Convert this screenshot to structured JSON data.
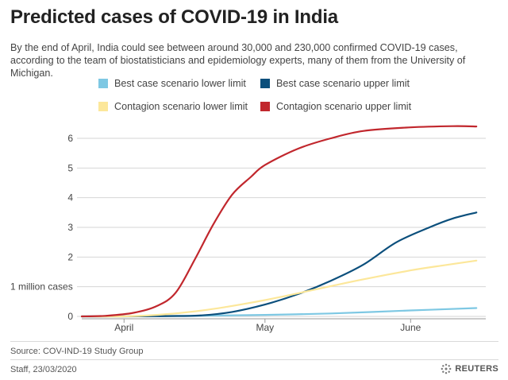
{
  "header": {
    "title": "Predicted cases of COVID-19 in India",
    "subtitle": "By the end of April, India could see between around 30,000 and 230,000 confirmed COVID-19 cases, according to the team of biostatisticians and epidemiology experts, many of them from the University of Michigan."
  },
  "legend": {
    "items": [
      {
        "label": "Best case scenario lower limit",
        "color": "#7ec8e3"
      },
      {
        "label": "Best case scenario upper limit",
        "color": "#0b4f7c"
      },
      {
        "label": "Contagion scenario lower limit",
        "color": "#fce79a"
      },
      {
        "label": "Contagion scenario upper limit",
        "color": "#c1272d"
      }
    ]
  },
  "footer": {
    "source": "Source: COV-IND-19 Study Group",
    "credit": "Staff, 23/03/2020",
    "brand": "REUTERS"
  },
  "chart_data": {
    "type": "line",
    "title": "Predicted cases of COVID-19 in India",
    "xlabel": "",
    "ylabel": "",
    "y_unit_label": "1 million cases",
    "ylim": [
      0,
      6.5
    ],
    "y_ticks": [
      0,
      1,
      2,
      3,
      4,
      5,
      6
    ],
    "y_tick_labels": [
      "0",
      "",
      "2",
      "3",
      "4",
      "5",
      "6"
    ],
    "xlim": [
      "2020-03-23",
      "2020-06-17"
    ],
    "x_ticks": [
      {
        "date": "2020-04-01",
        "label": "April"
      },
      {
        "date": "2020-05-01",
        "label": "May"
      },
      {
        "date": "2020-06-01",
        "label": "June"
      }
    ],
    "grid": "horizontal",
    "legend_position": "top",
    "series": [
      {
        "name": "Best case scenario lower limit",
        "color": "#7ec8e3",
        "points": [
          [
            "2020-03-23",
            0
          ],
          [
            "2020-04-01",
            0
          ],
          [
            "2020-04-15",
            0.02
          ],
          [
            "2020-05-01",
            0.05
          ],
          [
            "2020-05-15",
            0.1
          ],
          [
            "2020-06-01",
            0.2
          ],
          [
            "2020-06-15",
            0.28
          ]
        ]
      },
      {
        "name": "Best case scenario upper limit",
        "color": "#0b4f7c",
        "points": [
          [
            "2020-03-23",
            0
          ],
          [
            "2020-04-01",
            0
          ],
          [
            "2020-04-10",
            0.01
          ],
          [
            "2020-04-17",
            0.03
          ],
          [
            "2020-04-24",
            0.15
          ],
          [
            "2020-05-01",
            0.4
          ],
          [
            "2020-05-08",
            0.75
          ],
          [
            "2020-05-15",
            1.2
          ],
          [
            "2020-05-22",
            1.75
          ],
          [
            "2020-05-29",
            2.5
          ],
          [
            "2020-06-05",
            3.0
          ],
          [
            "2020-06-10",
            3.3
          ],
          [
            "2020-06-15",
            3.5
          ]
        ]
      },
      {
        "name": "Contagion scenario lower limit",
        "color": "#fce79a",
        "points": [
          [
            "2020-03-23",
            0
          ],
          [
            "2020-04-01",
            0
          ],
          [
            "2020-04-08",
            0.05
          ],
          [
            "2020-04-15",
            0.15
          ],
          [
            "2020-04-22",
            0.3
          ],
          [
            "2020-05-01",
            0.55
          ],
          [
            "2020-05-08",
            0.78
          ],
          [
            "2020-05-15",
            1.02
          ],
          [
            "2020-05-22",
            1.25
          ],
          [
            "2020-06-01",
            1.55
          ],
          [
            "2020-06-08",
            1.72
          ],
          [
            "2020-06-15",
            1.88
          ]
        ]
      },
      {
        "name": "Contagion scenario upper limit",
        "color": "#c1272d",
        "points": [
          [
            "2020-03-23",
            0
          ],
          [
            "2020-03-28",
            0.02
          ],
          [
            "2020-04-03",
            0.12
          ],
          [
            "2020-04-08",
            0.35
          ],
          [
            "2020-04-12",
            0.8
          ],
          [
            "2020-04-16",
            1.9
          ],
          [
            "2020-04-20",
            3.1
          ],
          [
            "2020-04-24",
            4.1
          ],
          [
            "2020-04-28",
            4.7
          ],
          [
            "2020-05-01",
            5.1
          ],
          [
            "2020-05-08",
            5.65
          ],
          [
            "2020-05-15",
            6.0
          ],
          [
            "2020-05-22",
            6.25
          ],
          [
            "2020-06-01",
            6.37
          ],
          [
            "2020-06-10",
            6.41
          ],
          [
            "2020-06-15",
            6.4
          ]
        ]
      }
    ]
  }
}
